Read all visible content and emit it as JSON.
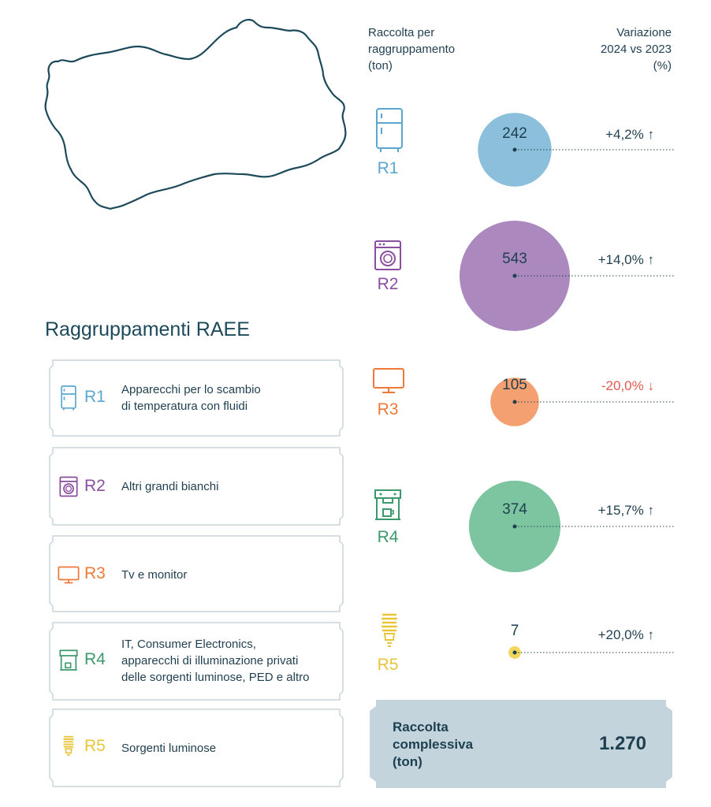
{
  "header": {
    "collection_title": "Raccolta per\nraggruppamento\n(ton)",
    "variation_title": "Variazione\n2024 vs 2023\n(%)"
  },
  "legend_title": "Raggruppamenti RAEE",
  "chart_data": {
    "type": "bubble",
    "categories": [
      "R1",
      "R2",
      "R3",
      "R4",
      "R5"
    ],
    "values": [
      242,
      543,
      105,
      374,
      7
    ],
    "value_labels": [
      "242",
      "543",
      "105",
      "374",
      "7"
    ],
    "variations": [
      "+4,2%",
      "+14,0%",
      "-20,0%",
      "+15,7%",
      "+20,0%"
    ],
    "variation_direction": [
      "up",
      "up",
      "down",
      "up",
      "up"
    ],
    "colors": [
      "#8bbfdc",
      "#ab89bf",
      "#f5a070",
      "#7cc5a0",
      "#f2d75e"
    ],
    "label_colors": [
      "#5aa7cf",
      "#8a4ea0",
      "#ee7a3a",
      "#3c9a6a",
      "#e8c63a"
    ],
    "variation_colors": [
      "#1f3f50",
      "#1f3f50",
      "#e05a50",
      "#1f3f50",
      "#1f3f50"
    ]
  },
  "legend": [
    {
      "code": "R1",
      "icon": "fridge-icon",
      "desc": "Apparecchi per lo scambio\ndi temperatura con fluidi"
    },
    {
      "code": "R2",
      "icon": "washing-machine-icon",
      "desc": "Altri grandi bianchi"
    },
    {
      "code": "R3",
      "icon": "monitor-icon",
      "desc": "Tv e monitor"
    },
    {
      "code": "R4",
      "icon": "coffee-machine-icon",
      "desc": "IT, Consumer Electronics,\napparecchi di illuminazione privati\ndelle sorgenti luminose, PED e altro"
    },
    {
      "code": "R5",
      "icon": "lightbulb-icon",
      "desc": "Sorgenti luminose"
    }
  ],
  "total": {
    "label": "Raccolta\ncomplessiva\n(ton)",
    "value": "1.270"
  },
  "arrows": {
    "up": "↑",
    "down": "↓"
  }
}
